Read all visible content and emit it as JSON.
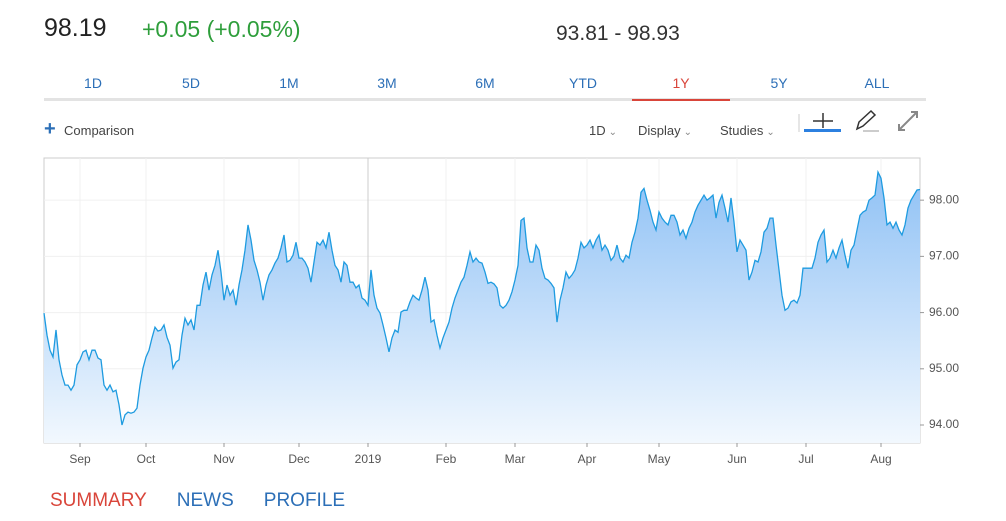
{
  "header": {
    "price": "98.19",
    "change": "+0.05 (+0.05%)",
    "range": "93.81 - 98.93"
  },
  "tabs": [
    "1D",
    "5D",
    "1M",
    "3M",
    "6M",
    "YTD",
    "1Y",
    "5Y",
    "ALL"
  ],
  "toolbar": {
    "comparison": "Comparison",
    "interval": "1D",
    "display": "Display",
    "studies": "Studies"
  },
  "chart_data": {
    "type": "area",
    "color": "#1e9be0",
    "xlim": [
      0,
      292
    ],
    "xticks": [
      {
        "value": 12,
        "label": "Sep"
      },
      {
        "value": 34,
        "label": "Oct"
      },
      {
        "value": 60,
        "label": "Nov"
      },
      {
        "value": 85,
        "label": "Dec"
      },
      {
        "value": 108,
        "label": "2019"
      },
      {
        "value": 134,
        "label": "Feb"
      },
      {
        "value": 157,
        "label": "Mar"
      },
      {
        "value": 181,
        "label": "Apr"
      },
      {
        "value": 205,
        "label": "May"
      },
      {
        "value": 231,
        "label": "Jun"
      },
      {
        "value": 254,
        "label": "Jul"
      },
      {
        "value": 279,
        "label": "Aug"
      }
    ],
    "ylim": [
      93.68,
      98.75
    ],
    "yticks": [
      {
        "value": 94,
        "label": "94.00"
      },
      {
        "value": 95,
        "label": "95.00"
      },
      {
        "value": 96,
        "label": "96.00"
      },
      {
        "value": 97,
        "label": "97.00"
      },
      {
        "value": 98,
        "label": "98.00"
      }
    ],
    "grid": true,
    "values": [
      95.99,
      95.6,
      95.33,
      95.21,
      95.69,
      95.16,
      94.89,
      94.71,
      94.71,
      94.62,
      94.71,
      95.07,
      95.16,
      95.3,
      95.33,
      95.16,
      95.33,
      95.33,
      95.19,
      95.16,
      94.71,
      94.62,
      94.71,
      94.59,
      94.62,
      94.36,
      94.0,
      94.18,
      94.23,
      94.21,
      94.23,
      94.3,
      94.71,
      95.01,
      95.21,
      95.33,
      95.55,
      95.74,
      95.67,
      95.69,
      95.78,
      95.56,
      95.42,
      95.01,
      95.12,
      95.16,
      95.6,
      95.9,
      95.78,
      95.87,
      95.69,
      96.13,
      96.13,
      96.49,
      96.72,
      96.4,
      96.67,
      96.84,
      97.11,
      96.72,
      96.22,
      96.49,
      96.31,
      96.4,
      96.13,
      96.49,
      96.76,
      97.11,
      97.56,
      97.29,
      96.93,
      96.76,
      96.54,
      96.22,
      96.49,
      96.67,
      96.76,
      96.88,
      96.97,
      97.15,
      97.38,
      96.9,
      96.93,
      97.02,
      97.25,
      96.97,
      96.97,
      96.9,
      96.79,
      96.54,
      96.9,
      97.25,
      97.2,
      97.29,
      97.15,
      97.43,
      97.11,
      96.84,
      96.76,
      96.54,
      96.9,
      96.84,
      96.54,
      96.54,
      96.44,
      96.49,
      96.26,
      96.22,
      96.13,
      96.76,
      96.31,
      96.08,
      95.99,
      95.78,
      95.55,
      95.3,
      95.55,
      95.69,
      95.65,
      96.01,
      96.04,
      96.04,
      96.19,
      96.31,
      96.26,
      96.22,
      96.4,
      96.63,
      96.4,
      95.83,
      95.87,
      95.6,
      95.37,
      95.55,
      95.69,
      95.83,
      96.08,
      96.26,
      96.4,
      96.54,
      96.63,
      96.84,
      97.08,
      96.9,
      96.97,
      96.9,
      96.88,
      96.72,
      96.52,
      96.54,
      96.51,
      96.44,
      96.13,
      96.08,
      96.13,
      96.22,
      96.37,
      96.58,
      96.84,
      97.64,
      97.68,
      97.15,
      96.9,
      96.9,
      97.2,
      97.11,
      96.79,
      96.61,
      96.58,
      96.52,
      96.44,
      95.83,
      96.22,
      96.44,
      96.72,
      96.61,
      96.67,
      96.76,
      96.97,
      97.25,
      97.15,
      97.2,
      97.29,
      97.15,
      97.29,
      97.38,
      97.11,
      97.2,
      97.11,
      96.93,
      97.0,
      97.2,
      96.97,
      96.9,
      97.02,
      96.97,
      97.25,
      97.43,
      97.68,
      98.14,
      98.21,
      98.0,
      97.82,
      97.61,
      97.47,
      97.79,
      97.68,
      97.61,
      97.56,
      97.73,
      97.73,
      97.61,
      97.38,
      97.47,
      97.32,
      97.5,
      97.61,
      97.79,
      97.91,
      98.0,
      98.09,
      98.0,
      98.04,
      98.09,
      97.68,
      97.96,
      98.09,
      97.86,
      97.61,
      98.04,
      97.61,
      97.08,
      97.29,
      97.2,
      97.11,
      96.58,
      96.72,
      96.93,
      96.9,
      97.08,
      97.43,
      97.5,
      97.68,
      97.68,
      97.2,
      96.76,
      96.31,
      96.04,
      96.08,
      96.19,
      96.22,
      96.17,
      96.31,
      96.79,
      96.79,
      96.79,
      96.79,
      96.97,
      97.25,
      97.38,
      97.47,
      96.9,
      96.97,
      97.11,
      96.97,
      97.15,
      97.29,
      97.02,
      96.79,
      97.11,
      97.2,
      97.47,
      97.73,
      97.79,
      97.82,
      98.0,
      98.04,
      98.09,
      98.5,
      98.39,
      98.04,
      97.56,
      97.61,
      97.5,
      97.61,
      97.47,
      97.38,
      97.56,
      97.86,
      98.0,
      98.09,
      98.18,
      98.19
    ]
  },
  "footer_tabs": [
    "SUMMARY",
    "NEWS",
    "PROFILE"
  ]
}
